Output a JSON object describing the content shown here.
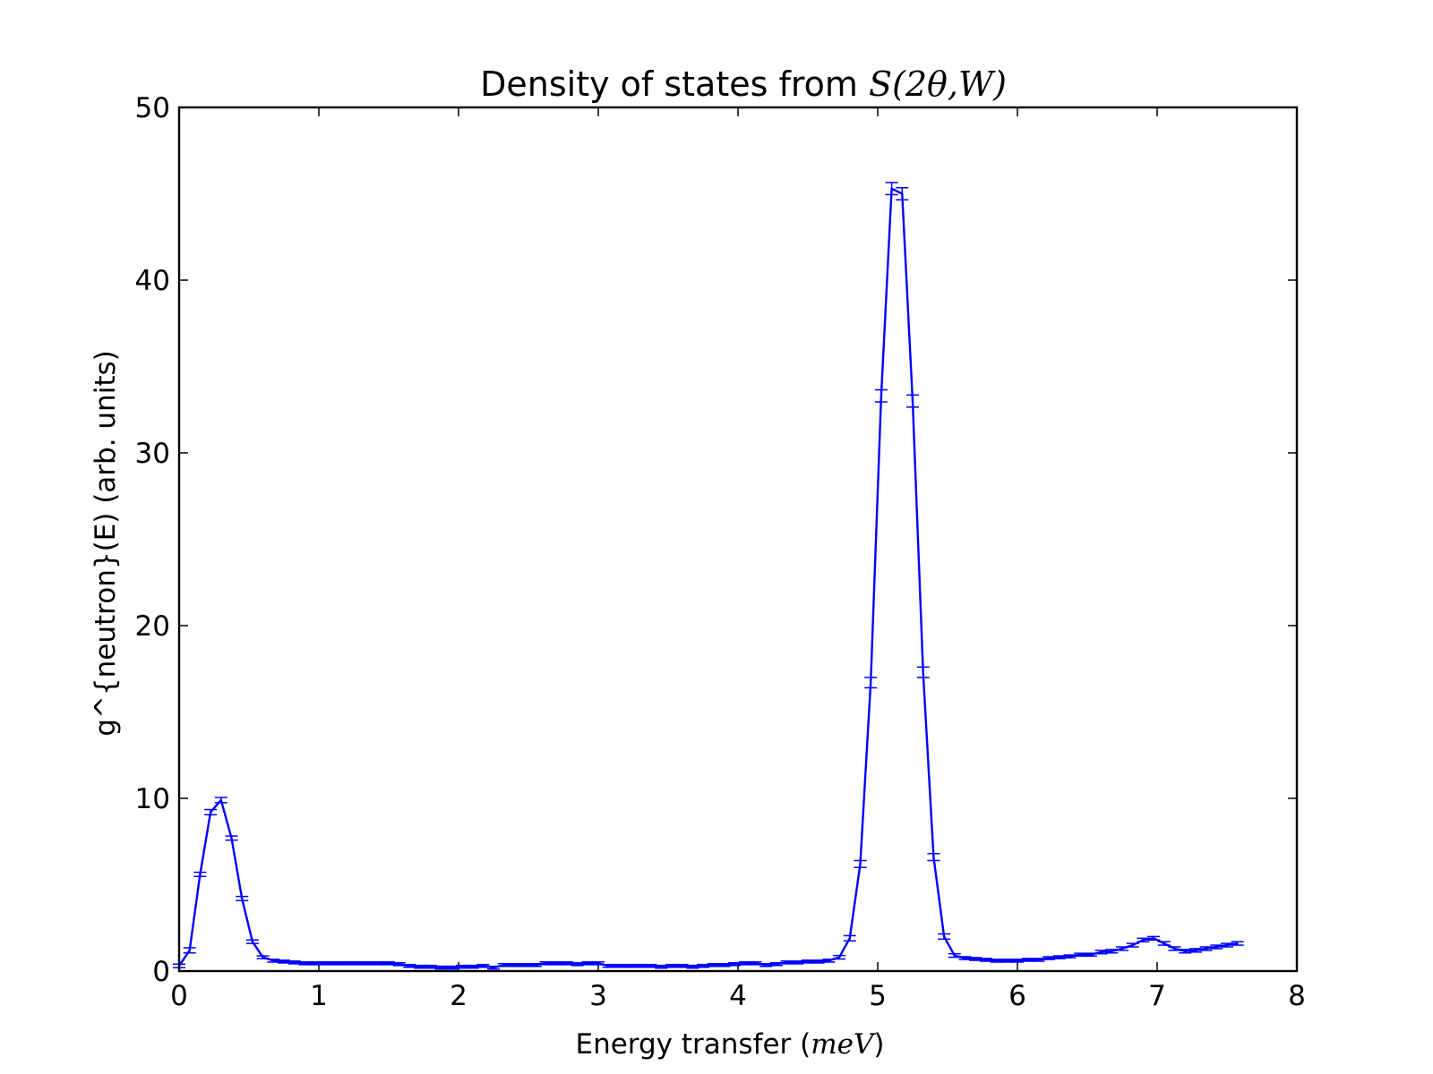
{
  "chart_data": {
    "type": "line",
    "title_text": "Density of states from ",
    "title_math": "S(2θ,W)",
    "xlabel_text": "Energy transfer (",
    "xlabel_math": "meV",
    "xlabel_close": ")",
    "ylabel": "g^{neutron}(E) (arb. units)",
    "xlim": [
      0,
      8
    ],
    "ylim": [
      0,
      50
    ],
    "xticks": [
      0,
      1,
      2,
      3,
      4,
      5,
      6,
      7,
      8
    ],
    "yticks": [
      0,
      10,
      20,
      30,
      40,
      50
    ],
    "grid": false,
    "line_color": "#0000ff",
    "series": [
      {
        "x": [
          0.0,
          0.075,
          0.15,
          0.225,
          0.3,
          0.375,
          0.45,
          0.525,
          0.6,
          0.675,
          0.75,
          0.825,
          0.9,
          0.975,
          1.05,
          1.125,
          1.2,
          1.275,
          1.35,
          1.425,
          1.5,
          1.575,
          1.65,
          1.725,
          1.8,
          1.875,
          1.95,
          2.025,
          2.1,
          2.175,
          2.25,
          2.325,
          2.4,
          2.475,
          2.55,
          2.625,
          2.7,
          2.775,
          2.85,
          2.925,
          3.0,
          3.075,
          3.15,
          3.225,
          3.3,
          3.375,
          3.45,
          3.525,
          3.6,
          3.675,
          3.75,
          3.825,
          3.9,
          3.975,
          4.05,
          4.125,
          4.2,
          4.275,
          4.35,
          4.425,
          4.5,
          4.575,
          4.65,
          4.725,
          4.8,
          4.875,
          4.95,
          5.025,
          5.1,
          5.175,
          5.25,
          5.325,
          5.4,
          5.475,
          5.55,
          5.625,
          5.7,
          5.775,
          5.85,
          5.925,
          6.0,
          6.075,
          6.15,
          6.225,
          6.3,
          6.375,
          6.45,
          6.525,
          6.6,
          6.675,
          6.75,
          6.825,
          6.9,
          6.975,
          7.05,
          7.125,
          7.2,
          7.275,
          7.35,
          7.425,
          7.5,
          7.575
        ],
        "y": [
          0.3,
          1.2,
          5.6,
          9.2,
          9.9,
          7.7,
          4.2,
          1.7,
          0.8,
          0.6,
          0.55,
          0.5,
          0.45,
          0.45,
          0.45,
          0.45,
          0.45,
          0.45,
          0.45,
          0.45,
          0.45,
          0.4,
          0.3,
          0.25,
          0.25,
          0.2,
          0.2,
          0.25,
          0.25,
          0.3,
          0.2,
          0.35,
          0.35,
          0.35,
          0.35,
          0.45,
          0.45,
          0.45,
          0.4,
          0.45,
          0.45,
          0.3,
          0.3,
          0.3,
          0.3,
          0.3,
          0.25,
          0.3,
          0.3,
          0.25,
          0.3,
          0.35,
          0.35,
          0.4,
          0.45,
          0.45,
          0.35,
          0.4,
          0.5,
          0.5,
          0.55,
          0.55,
          0.6,
          0.8,
          1.9,
          6.2,
          16.7,
          33.3,
          45.3,
          45.0,
          33.0,
          17.3,
          6.6,
          2.0,
          0.9,
          0.75,
          0.7,
          0.65,
          0.6,
          0.6,
          0.6,
          0.65,
          0.65,
          0.75,
          0.8,
          0.85,
          0.95,
          0.95,
          1.1,
          1.15,
          1.3,
          1.5,
          1.8,
          1.9,
          1.6,
          1.3,
          1.15,
          1.2,
          1.3,
          1.4,
          1.5,
          1.6
        ],
        "yerr": [
          0.1,
          0.15,
          0.12,
          0.15,
          0.15,
          0.12,
          0.12,
          0.1,
          0.08,
          0.08,
          0.08,
          0.08,
          0.08,
          0.08,
          0.08,
          0.08,
          0.08,
          0.08,
          0.08,
          0.08,
          0.08,
          0.08,
          0.08,
          0.08,
          0.08,
          0.08,
          0.08,
          0.08,
          0.08,
          0.08,
          0.08,
          0.08,
          0.08,
          0.08,
          0.08,
          0.08,
          0.08,
          0.08,
          0.08,
          0.08,
          0.08,
          0.08,
          0.08,
          0.08,
          0.08,
          0.08,
          0.08,
          0.08,
          0.08,
          0.08,
          0.08,
          0.08,
          0.08,
          0.08,
          0.08,
          0.08,
          0.08,
          0.08,
          0.08,
          0.08,
          0.08,
          0.08,
          0.08,
          0.1,
          0.15,
          0.2,
          0.3,
          0.35,
          0.35,
          0.35,
          0.35,
          0.3,
          0.2,
          0.15,
          0.1,
          0.08,
          0.08,
          0.08,
          0.08,
          0.08,
          0.08,
          0.08,
          0.08,
          0.08,
          0.08,
          0.08,
          0.08,
          0.08,
          0.1,
          0.1,
          0.1,
          0.1,
          0.1,
          0.1,
          0.1,
          0.1,
          0.1,
          0.1,
          0.1,
          0.1,
          0.1,
          0.1
        ]
      }
    ]
  }
}
